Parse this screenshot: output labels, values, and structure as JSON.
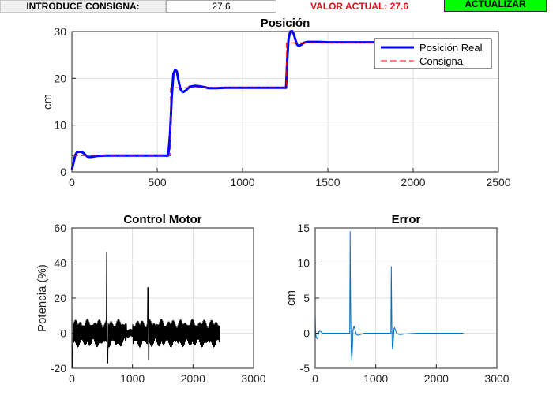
{
  "controls": {
    "consigna_label": "INTRODUCE CONSIGNA:",
    "consigna_value": "27.6",
    "valor_actual": "VALOR ACTUAL: 27.6",
    "actualizar_label": "ACTUALIZAR"
  },
  "chart_data": [
    {
      "type": "line",
      "title": "Posición",
      "xlabel": "",
      "ylabel": "cm",
      "xlim": [
        0,
        2500
      ],
      "ylim": [
        0,
        30
      ],
      "xticks": [
        "0",
        "500",
        "1000",
        "1500",
        "2000",
        "2500"
      ],
      "yticks": [
        "0",
        "10",
        "20",
        "30"
      ],
      "grid": true,
      "legend_position": "top-right",
      "series": [
        {
          "name": "Posición Real",
          "color": "#0000ff",
          "x": [
            0,
            10,
            20,
            30,
            40,
            50,
            60,
            70,
            80,
            90,
            100,
            115,
            130,
            150,
            200,
            250,
            300,
            400,
            500,
            565,
            575,
            585,
            595,
            605,
            615,
            625,
            635,
            645,
            655,
            670,
            690,
            720,
            750,
            780,
            800,
            850,
            900,
            1000,
            1100,
            1200,
            1255,
            1262,
            1270,
            1280,
            1290,
            1300,
            1310,
            1320,
            1330,
            1345,
            1360,
            1380,
            1400,
            1450,
            1500,
            1600,
            1800,
            2000,
            2200,
            2400,
            2450
          ],
          "y": [
            0.5,
            2.0,
            3.6,
            4.2,
            4.3,
            4.3,
            4.2,
            4.0,
            3.6,
            3.3,
            3.2,
            3.2,
            3.3,
            3.4,
            3.5,
            3.5,
            3.5,
            3.5,
            3.5,
            3.5,
            8.0,
            16.0,
            21.0,
            21.8,
            21.5,
            19.5,
            17.8,
            17.2,
            17.1,
            17.5,
            18.2,
            18.4,
            18.3,
            18.1,
            17.9,
            17.9,
            18.0,
            18.0,
            18.0,
            18.0,
            18.0,
            24.0,
            28.5,
            30.0,
            30.1,
            29.5,
            28.2,
            27.2,
            26.9,
            27.2,
            27.6,
            27.8,
            27.8,
            27.8,
            27.7,
            27.7,
            27.7,
            27.6,
            27.6,
            27.6,
            27.6
          ]
        },
        {
          "name": "Consigna",
          "color": "#ff0000",
          "x": [
            0,
            578,
            578,
            1258,
            1258,
            2450
          ],
          "y": [
            3.5,
            3.5,
            18.0,
            18.0,
            27.6,
            27.6
          ]
        }
      ]
    },
    {
      "type": "line",
      "title": "Control Motor",
      "xlabel": "",
      "ylabel": "Potencia (%)",
      "xlim": [
        0,
        3000
      ],
      "ylim": [
        -20,
        60
      ],
      "xticks": [
        "0",
        "1000",
        "2000",
        "3000"
      ],
      "yticks": [
        "-20",
        "0",
        "20",
        "40",
        "60"
      ],
      "grid": true,
      "series": [
        {
          "color": "#000000",
          "x_start": 0,
          "x_end": 2450,
          "noise_amplitude": 8,
          "spikes": [
            {
              "x": 0,
              "y": 15
            },
            {
              "x": 10,
              "y": -20
            },
            {
              "x": 575,
              "y": 46
            },
            {
              "x": 590,
              "y": -17
            },
            {
              "x": 1255,
              "y": 26
            },
            {
              "x": 1268,
              "y": -15
            }
          ]
        }
      ]
    },
    {
      "type": "line",
      "title": "Error",
      "xlabel": "",
      "ylabel": "cm",
      "xlim": [
        0,
        3000
      ],
      "ylim": [
        -5,
        15
      ],
      "xticks": [
        "0",
        "1000",
        "2000",
        "3000"
      ],
      "yticks": [
        "-5",
        "0",
        "5",
        "10",
        "15"
      ],
      "grid": true,
      "series": [
        {
          "color": "#0072bd",
          "x": [
            0,
            5,
            15,
            30,
            40,
            50,
            60,
            75,
            90,
            110,
            130,
            200,
            400,
            570,
            576,
            580,
            585,
            595,
            605,
            615,
            625,
            640,
            660,
            680,
            700,
            740,
            780,
            820,
            900,
            1100,
            1250,
            1256,
            1260,
            1265,
            1272,
            1280,
            1290,
            1300,
            1310,
            1330,
            1350,
            1400,
            1500,
            1700,
            2000,
            2300,
            2450
          ],
          "y": [
            2.9,
            0.5,
            -0.5,
            -0.8,
            -0.7,
            -0.2,
            0.2,
            0.3,
            0.2,
            0.1,
            0.0,
            0.0,
            0.0,
            0.0,
            14.5,
            9.0,
            3.0,
            -2.5,
            -4.0,
            -2.0,
            0.5,
            1.0,
            0.4,
            -0.2,
            -0.3,
            -0.2,
            -0.1,
            0.0,
            0.0,
            0.0,
            0.0,
            9.5,
            6.0,
            1.0,
            -1.8,
            -2.3,
            -1.0,
            0.6,
            0.8,
            0.3,
            -0.1,
            -0.2,
            -0.1,
            0.0,
            0.0,
            0.0,
            0.0
          ]
        }
      ]
    }
  ]
}
